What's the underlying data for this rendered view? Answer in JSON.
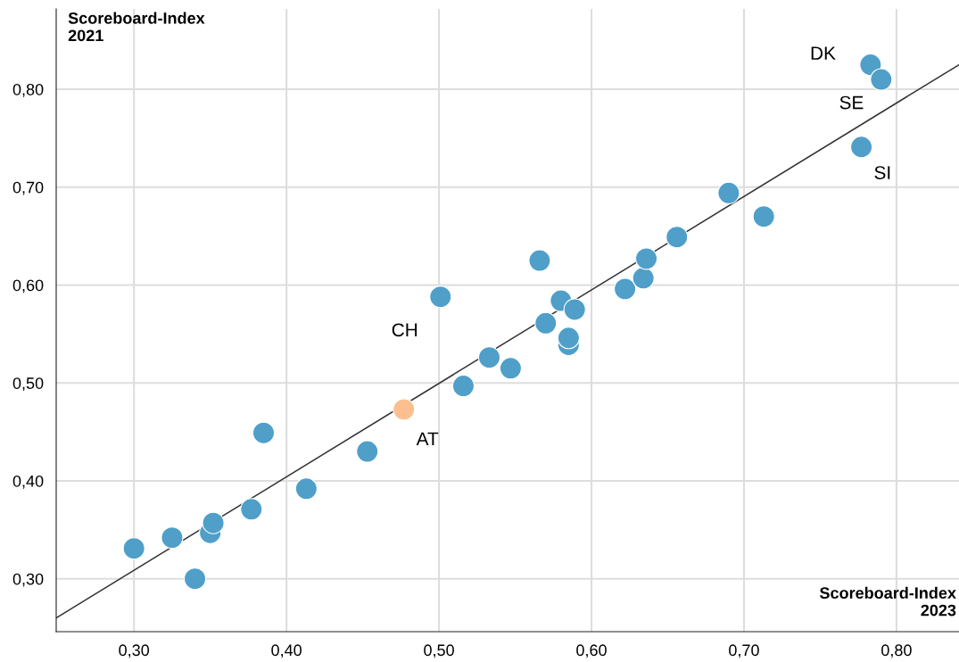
{
  "chart_data": {
    "type": "scatter",
    "xlabel": "Scoreboard-Index\n2023",
    "ylabel": "Scoreboard-Index\n2021",
    "xlim": [
      0.249,
      0.841
    ],
    "ylim": [
      0.246,
      0.882
    ],
    "xticks": [
      {
        "value": 0.3,
        "label": "0,30"
      },
      {
        "value": 0.4,
        "label": "0,40"
      },
      {
        "value": 0.5,
        "label": "0,50"
      },
      {
        "value": 0.6,
        "label": "0,60"
      },
      {
        "value": 0.7,
        "label": "0,70"
      },
      {
        "value": 0.8,
        "label": "0,80"
      }
    ],
    "yticks": [
      {
        "value": 0.3,
        "label": "0,30"
      },
      {
        "value": 0.4,
        "label": "0,40"
      },
      {
        "value": 0.5,
        "label": "0,50"
      },
      {
        "value": 0.6,
        "label": "0,60"
      },
      {
        "value": 0.7,
        "label": "0,70"
      },
      {
        "value": 0.8,
        "label": "0,80"
      }
    ],
    "grid": true,
    "marker": "circle",
    "series": [
      {
        "color": "#4f9fc9",
        "x": [
          0.3,
          0.325,
          0.34,
          0.35,
          0.352,
          0.377,
          0.385,
          0.413,
          0.453,
          0.501,
          0.516,
          0.533,
          0.547,
          0.566,
          0.57,
          0.58,
          0.585,
          0.585,
          0.589,
          0.622,
          0.634,
          0.636,
          0.656,
          0.69,
          0.713,
          0.777,
          0.783,
          0.79
        ],
        "values": [
          0.331,
          0.342,
          0.3,
          0.347,
          0.357,
          0.371,
          0.449,
          0.392,
          0.43,
          0.588,
          0.497,
          0.526,
          0.515,
          0.625,
          0.561,
          0.584,
          0.539,
          0.546,
          0.575,
          0.596,
          0.607,
          0.627,
          0.649,
          0.694,
          0.67,
          0.741,
          0.825,
          0.81
        ]
      },
      {
        "color": "#fdbf8f",
        "x": [
          0.477
        ],
        "values": [
          0.473
        ]
      },
      {
        "type": "line",
        "marker": "none",
        "color": "#333333",
        "x": [
          0.249,
          0.841
        ],
        "values": [
          0.26,
          0.825
        ]
      }
    ],
    "annotations": [
      {
        "text": "DK",
        "x": 0.783,
        "y": 0.825
      },
      {
        "text": "SE",
        "x": 0.79,
        "y": 0.81
      },
      {
        "text": "SI",
        "x": 0.777,
        "y": 0.741
      },
      {
        "text": "CH",
        "x": 0.501,
        "y": 0.588
      },
      {
        "text": "AT",
        "x": 0.477,
        "y": 0.473
      }
    ]
  }
}
